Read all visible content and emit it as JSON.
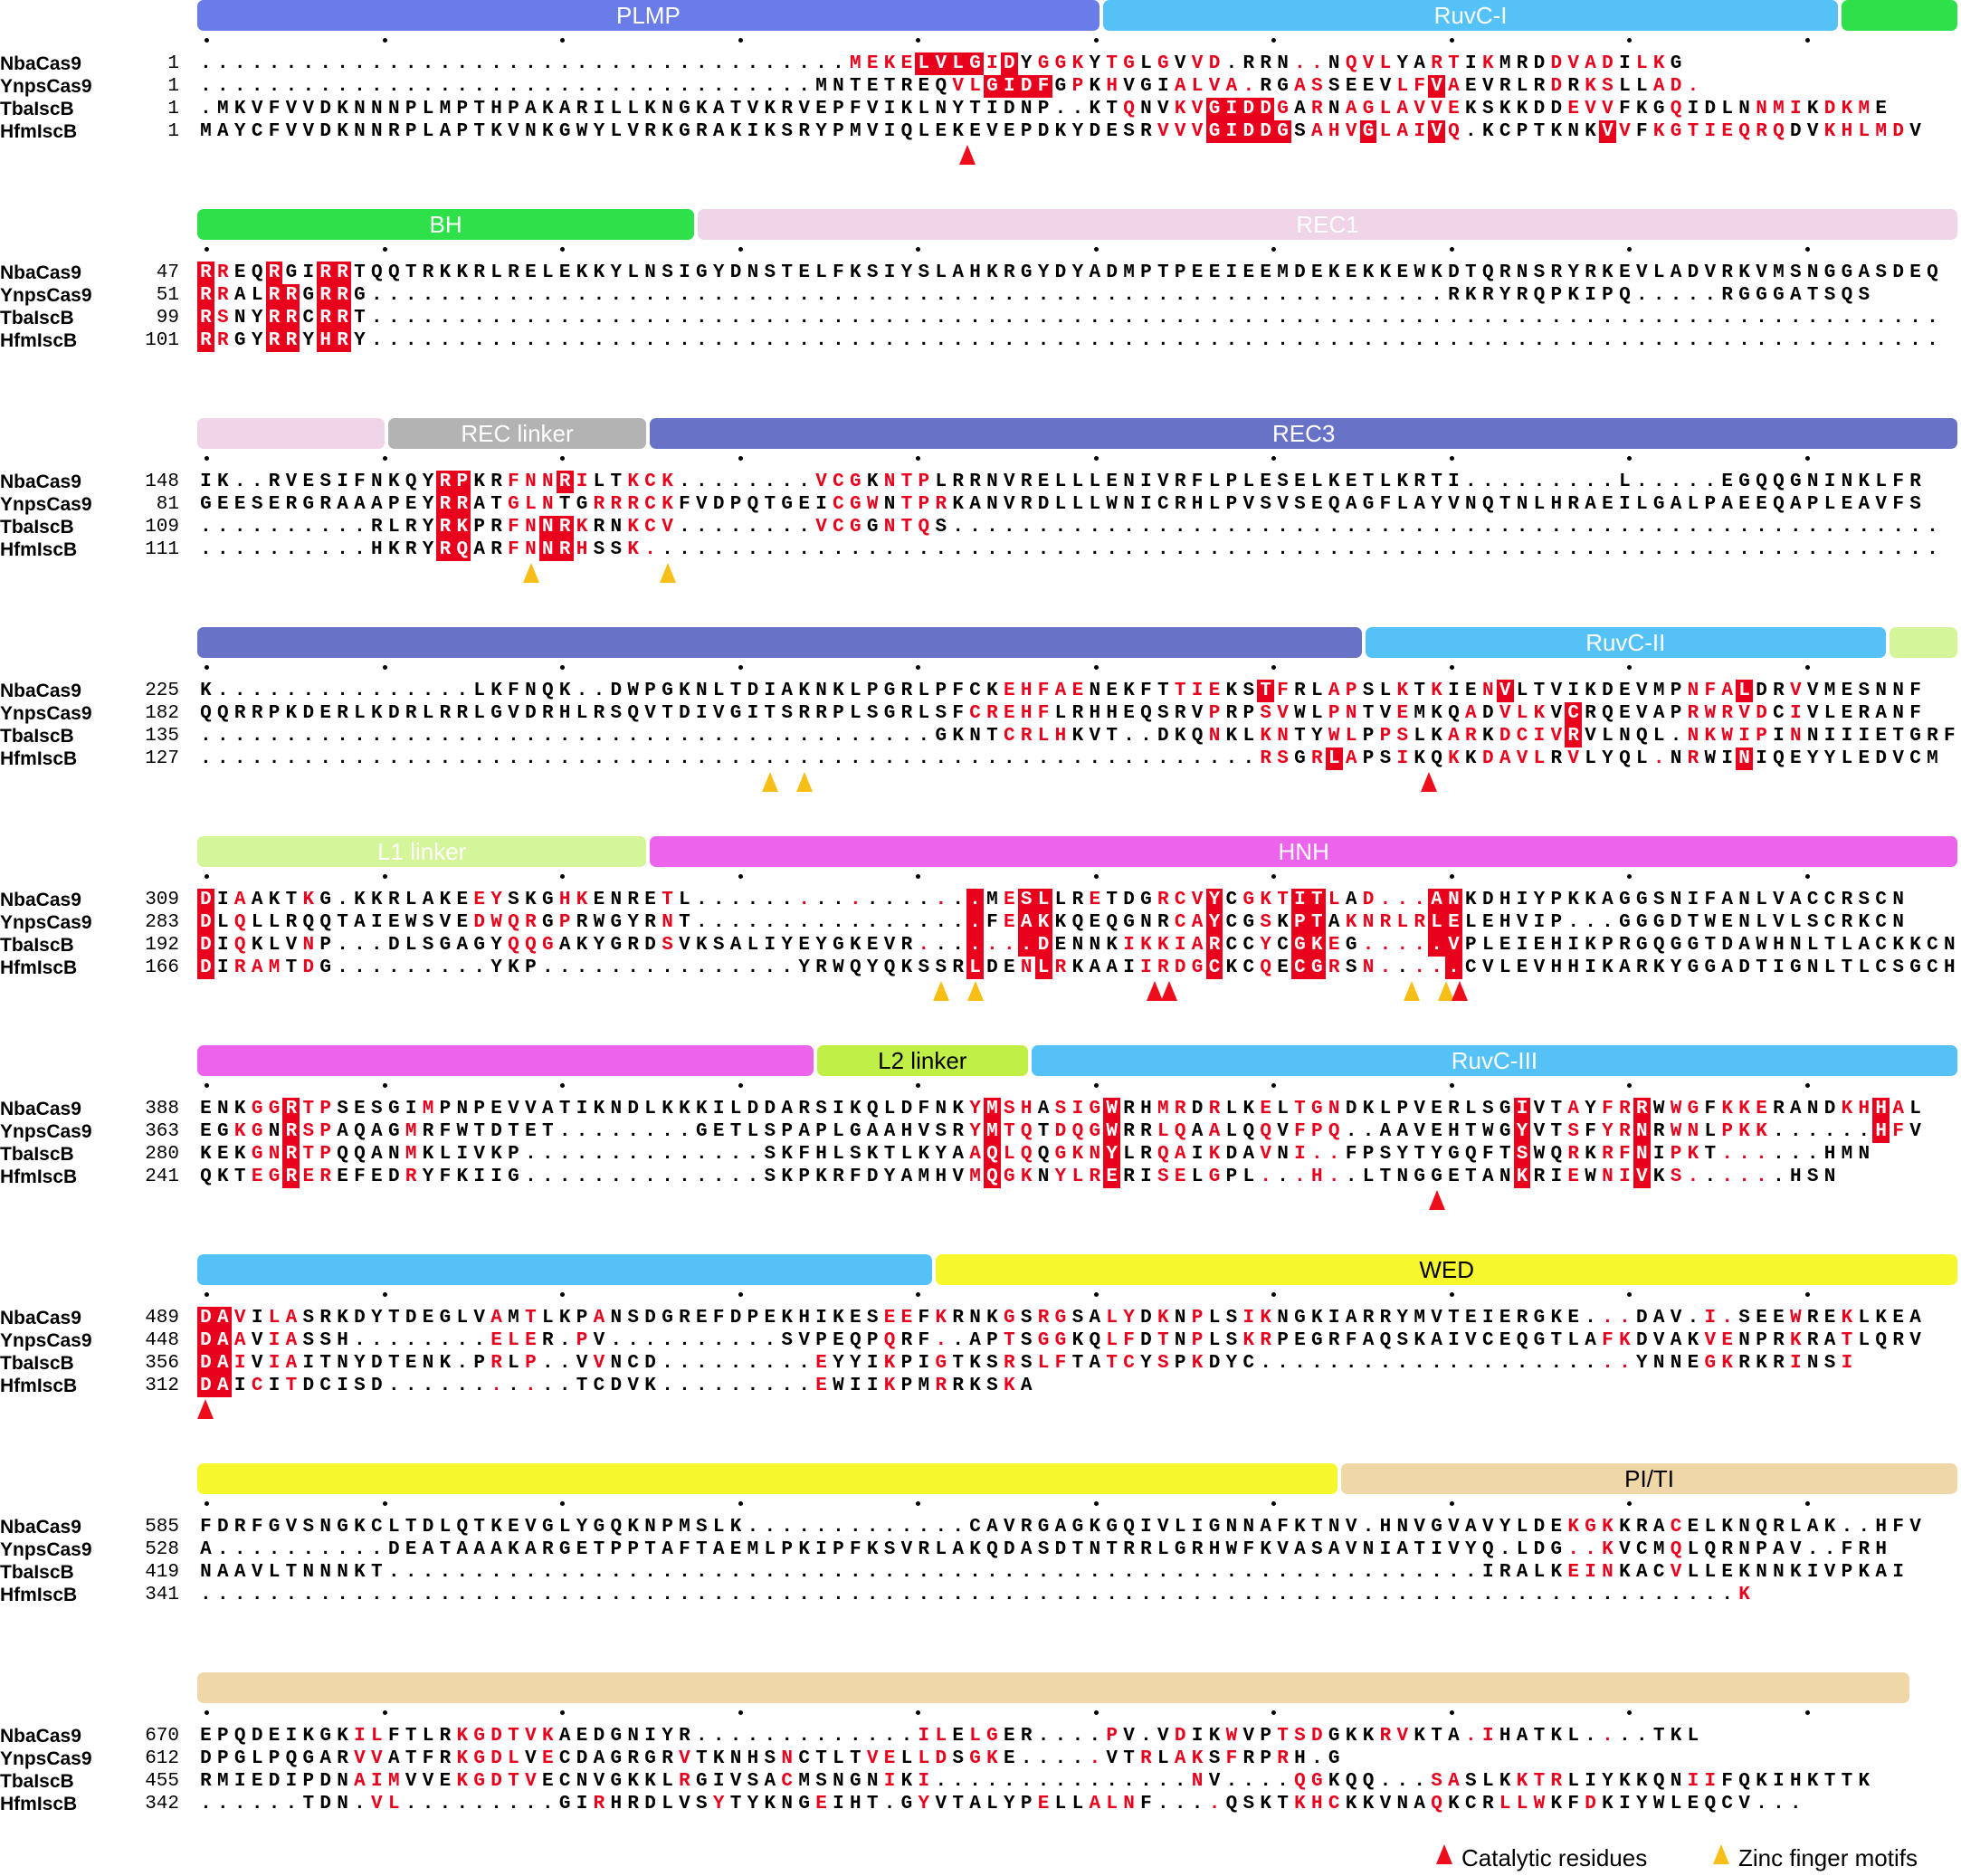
{
  "species": [
    "NbaCas9",
    "YnpsCas9",
    "TbaIscB",
    "HfmIscB"
  ],
  "blocks": [
    {
      "domains": [
        {
          "label": "PLMP",
          "start": 0,
          "end": 38,
          "color": "#6a7ce8"
        },
        {
          "label": "RuvC-I",
          "start": 38,
          "end": 69,
          "color": "#55c2f7"
        },
        {
          "label": "",
          "start": 69,
          "end": 74,
          "color": "#2ee04a"
        }
      ],
      "rows": [
        {
          "species": "NbaCas9",
          "start": "1",
          "seq": "...................................... MEKELVLGIDYGGKYTGLGVVD.RRN..NQVLYARTIKMRDDVADILKG",
          "hl": "38-39:rr,40-41:rr,42-45:hh,46:r,47:h,49:r,50:r,51:r,53:r,54:r,56:r,58:r,59:r,64:r,65:r,67:r,68:r,69:r,72:r,73:r,75:r,79:r,80:r,81:r,82:r,84:r,85:r"
        },
        {
          "species": "YnpsCas9",
          "start": "1",
          "seq": "....................................MNTETREQVLGIDFGPKHVGIALVA.RGASSEEVLFVAEVRLRDRKSLLAD.",
          "hl": "44:r,45:r,46-49:h,51:r,53:r,57:r,58:r,59:r,60:r,61:r,64:r,65:r,70:r,71:r,72:h,73:r,79:r,81:r,82:r,85:r,86:r,87:r"
        },
        {
          "species": "TbaIscB",
          "start": "1",
          "seq": ".MKVFVVDKNNNPLMPTHPAKARILLKNGKATVKRVEPFVIKLNYTIDNP..KTQNVKVGIDDGARNAGLAVVEKSKKDDEVVFKGQIDLNNMIKDKME",
          "hl": "54:r,57:r,58:r,59-62:h,63:r,65:r,67:r,68:r,69:r,70:r,71:r,72:r,73:r,80:r,81:r,82:r,86:r,91:r,92:r,93:r,95:r,96:r,97:r"
        },
        {
          "species": "HfmIscB",
          "start": "1",
          "seq": "MAYCFVVDKNNRPLAPTKVNKGWYLVRKGRAKIKSRYPMVIQLEKEVEPDKYDESRVVVGIDDGSAHVGLAIVQ.KCPTKNKVVFKGTIEQRQDVKHLMDV",
          "hl": "56:r,57:r,58:r,59-62:h,63:h,65:r,66:r,67:r,68:h,69:r,70:r,71:r,72:h,73:r,82:h,83:r,85:r,86:r,87:r,88:r,89:r,90:r,91:r,92:r,95:r,96:r,97:r,98:r,99:r"
        }
      ],
      "markers": [
        {
          "col": 45,
          "kind": "cat"
        }
      ]
    },
    {
      "domains": [
        {
          "label": "BH",
          "start": 0,
          "end": 21,
          "color": "#2ee04a"
        },
        {
          "label": "REC1",
          "start": 21,
          "end": 74,
          "color": "#f0d4e8"
        }
      ],
      "rows": [
        {
          "species": "NbaCas9",
          "start": "47",
          "seq": "RREQRGIRRTQQTRKKRLRELEKKYLNSIGYDNSTELFKSIYSLAHKRGYDYADMPTPEEIEEMDEKEKKEWKDTQRNSRYRKEVLADVRKVMSNGGASDEQ",
          "hl": "0:h,1:r,4:h,7:h,8:h"
        },
        {
          "species": "YnpsCas9",
          "start": "51",
          "seq": "RRALRRGRRG...............................................................RKRYRQPKIPQ.....RGGGATSQS",
          "hl": "0:h,1:r,4:h,5:h,7:h,8:h"
        },
        {
          "species": "TbaIscB",
          "start": "99",
          "seq": "RSNYRRCRRT............................................................................................",
          "hl": "0:h,1:r,4:h,5:h,7:h,8:h"
        },
        {
          "species": "HfmIscB",
          "start": "101",
          "seq": "RRGYRRYHRY............................................................................................",
          "hl": "0:h,1:r,4:h,5:h,7:h,8:h"
        }
      ],
      "markers": []
    },
    {
      "domains": [
        {
          "label": "",
          "start": 0,
          "end": 8,
          "color": "#f0d4e8"
        },
        {
          "label": "REC linker",
          "start": 8,
          "end": 19,
          "color": "#b3b3b3"
        },
        {
          "label": "REC3",
          "start": 19,
          "end": 74,
          "color": "#6872c6"
        }
      ],
      "rows": [
        {
          "species": "NbaCas9",
          "start": "148",
          "seq": "IK..RVESIFNKQYRPKRFNNRILTKCK........VCGKNTPLRRNVRELLLENIVRFLPLESELKETLKRTI.........L.....EGQQGNINKLFR",
          "hl": "14-15:hh,18:r,19:r,20:r,21:h,22:r,25:r,26:r,27:r,36:r,37:r,38:r,40:r,41:r,42:r"
        },
        {
          "species": "YnpsCas9",
          "start": "81",
          "seq": "GEESERGRAAAPEYRRATGLNTGRRRCKFVDPQTGEICGWNTPRKANVRDLLLWNICRHLPVSVSEQAGFLAYVNQTNLHRAEILGALPAEEQAPLEAVFS",
          "hl": "14-15:hh,18:r,19:r,20:r,23:r,24:r,25:r,26:r,27:r,37:r,38:r,39:r,41:r,42:r,43:r"
        },
        {
          "species": "TbaIscB",
          "start": "109",
          "seq": "..........RLRYRKPRFNNRKRNKCV........VCGGNTQS..........................................................",
          "hl": "14-15:hh,18:r,19:r,20:h,21:h,22:r,25:r,26:r,27:r,36:r,37:r,38:r,40:r,41:r,42:r"
        },
        {
          "species": "HfmIscB",
          "start": "111",
          "seq": "..........HKRYRQARFNNRHSSK............................................................................",
          "hl": "14-15:hh,18:r,19:r,20:h,21:h,22:r,25:r,26:r"
        }
      ],
      "markers": [
        {
          "col": 19.5,
          "kind": "zinc"
        },
        {
          "col": 27.5,
          "kind": "zinc"
        }
      ]
    },
    {
      "domains": [
        {
          "label": "",
          "start": 0,
          "end": 49,
          "color": "#6872c6"
        },
        {
          "label": "RuvC-II",
          "start": 49,
          "end": 71,
          "color": "#55c2f7"
        },
        {
          "label": "",
          "start": 71,
          "end": 74,
          "color": "#d5f59a"
        }
      ],
      "rows": [
        {
          "species": "NbaCas9",
          "start": "225",
          "seq": "K...............LKFNQK..DWPGKNLTDIAKNKLPGRLPFCKEHFAENEKFTTIEKSTFRLAPSLKTKIENVLTVIKDEVMPNFALDRVVMESNNF",
          "hl": "47:r,48:r,49:r,50:r,51:r,57:r,58:r,59:r,62:h,63:r,66:r,67:r,70:r,72:r,75:r,76:h,87:r,88:r,89:r,90:h,93:r"
        },
        {
          "species": "YnpsCas9",
          "start": "182",
          "seq": "QQRRPKDERLKDRLRRLGVDRHLRSQVTDIVGITSRRPLSGRLSFCREHFLRHHEQSRVPRPSVWLPNTVEMKQADVLKVCRQEVAPRWRVDCIVLERANF",
          "hl": "45:r,46:r,47:r,48:r,49:r,59:r,62:r,63:r,66:r,67:r,70:r,74:r,76:r,77:r,78:r,80:h,87:r,88:r,89:r,90:r,91:r,93:r"
        },
        {
          "species": "TbaIscB",
          "start": "135",
          "seq": "...........................................GKNTCRLHKVT..DKQNKLKNTYWLPPSLKARKDCIVRVLNQL.NKWIPINNIIIETGRF",
          "hl": "47:r,48:r,49:r,50:r,59:r,62:r,63:r,66:r,67:r,69:r,70:r,73:r,74:r,76:r,77:r,78:r,79:r,80:h,87:r,88:r,89:r,90:r,91:r,93:r"
        },
        {
          "species": "HfmIscB",
          "start": "127",
          "seq": "..............................................................RSGRLAPSIKQKKDAVLRVLYQL.NRWINIQEYYLEDVCM",
          "hl": "62:r,63:r,65:r,66:h,67:r,70:r,73:r,75:r,76:r,77:r,78:r,80:r,85:r,87:r,90:h"
        }
      ],
      "markers": [
        {
          "col": 33.5,
          "kind": "zinc"
        },
        {
          "col": 35.5,
          "kind": "zinc"
        },
        {
          "col": 72,
          "kind": "cat"
        }
      ]
    },
    {
      "domains": [
        {
          "label": "L1 linker",
          "start": 0,
          "end": 19,
          "color": "#d5f59a"
        },
        {
          "label": "HNH",
          "start": 19,
          "end": 74,
          "color": "#ec64ec"
        }
      ],
      "rows": [
        {
          "species": "NbaCas9",
          "start": "309",
          "seq": "DIAAKTKG.KKRLAKEEYSKGHKENRETL.................MESLLRETDGRCVYCGKTITLAD...ANKDHIYPKKAGGSNIFANLVACCRSCN",
          "hl": "0:h,2:r,6:r,16:r,17:r,21:r,22:r,27:r,35:r,38:r,43:r,45:h,47:r,48-49:hh,52:r,56:r,57:r,58:r,59:h,61:r,62:r,63:r,64-65:hh,66:r,68:r,69:r,70:r,71:r,72:h,73:h"
        },
        {
          "species": "YnpsCas9",
          "start": "283",
          "seq": "DLQLLRQQTAIEWSVEDWQRGPRWGYRNT.................FEAKKQEQGNRCAYCGSKPTAKNRLRLELEHVIP...GGGDTWENLVLSCRKCN",
          "hl": "0:h,2:r,16:r,17:r,18:r,19:r,21:r,27:r,45:h,47:r,48-49:hh,57:r,58:r,59:h,62:r,64-65:hh,67:r,68:r,69:r,70:r,71:r,72:h,73:h"
        },
        {
          "species": "TbaIscB",
          "start": "192",
          "seq": "DIQKLVNP...DLSGAGYQQGAKYGRDSVKSALIYEYGKEVR.......DENNKIKKIARCCYCGKEG.....VPLEIEHIKPRGQGGTDAWHNLTLACKKCN",
          "hl": "0:h,2:r,6:r,18:r,19:r,20:r,27:r,42:r,45:h,46:r,47:r,48-49:hh,54:r,55:r,56:r,57:r,58:r,59:h,62:r,64-65:hh,66:r,68:r,69:r,70:r,71:r,72:h,73:h"
        },
        {
          "species": "HfmIscB",
          "start": "166",
          "seq": "DIRAMTDG.........YKP...............YRWQYQKSSRLDENLRKAAIIRDGCKCQECGRSN.....CVLEVHHIKARKYGGADTIGNLTLCSGCH",
          "hl": "0:h,2:r,3:r,4:r,6:r,45:h,48:r,49:h,50:r,55:r,56:r,57:r,58:r,59:h,62:r,64-65:hh,66:r,68:r,69:r,71:r,72:r,73:h"
        }
      ],
      "markers": [
        {
          "col": 43.5,
          "kind": "zinc"
        },
        {
          "col": 45.5,
          "kind": "zinc"
        },
        {
          "col": 56,
          "kind": "cat"
        },
        {
          "col": 56.8,
          "kind": "cat"
        },
        {
          "col": 71,
          "kind": "zinc"
        },
        {
          "col": 73,
          "kind": "zinc"
        },
        {
          "col": 73.8,
          "kind": "cat"
        }
      ]
    },
    {
      "domains": [
        {
          "label": "",
          "start": 0,
          "end": 26,
          "color": "#ec64ec"
        },
        {
          "label": "L2 linker",
          "start": 26,
          "end": 35,
          "color": "#c0f046",
          "dark": true
        },
        {
          "label": "RuvC-III",
          "start": 35,
          "end": 74,
          "color": "#55c2f7"
        }
      ],
      "rows": [
        {
          "species": "NbaCas9",
          "start": "388",
          "seq": "ENKGGRTPSESGIMPNPEVVATIKNDLKKKILDDARSIKQLDFNKYMSHASIGWRHMRDRLKELTGNDKLPVERLSGIVTAYFRRWWGFKKERANDKHHAL",
          "hl": "3:r,4:r,5:h,6:r,7:r,13:r,45:r,46:h,47:r,48:r,50:r,51:r,52:r,53:h,56:r,57:r,59:r,62:r,64:r,65:r,66:r,77:h,80:r,82:r,83:r,84:h,86:r,87:r,89:r,90:r,91:r,96:r,97:r,98:h,99:r"
        },
        {
          "species": "YnpsCas9",
          "start": "363",
          "seq": "EGKGNRSPAQAGMRFWTDTET........GETLSPAPLGAAHVSRYMTQTDQGWRRLQAALQQVFPQ..AAVEHTWGYVTSFYRNRWNLPKK......HFV",
          "hl": "2:r,3:r,5:h,6:r,7:r,12:r,45:r,46:h,47:r,48:r,50:r,51:r,52:r,53:h,56:r,57:r,59:r,62:r,64:r,65:r,66:r,77:h,80:r,82:r,83:r,84:h,86:r,87:r,89:r,90:r,91:r,98:h,99:r"
        },
        {
          "species": "TbaIscB",
          "start": "280",
          "seq": "KEKGNRTPQQANMKLIVKP..............SKFHLSKTLKYAAQLQQGKNYLRQAIKDAVNI..FPSYTYGQFTSWQRKRFNIPKT......HMN",
          "hl": "3:r,4:r,5:h,6:r,7:r,12:r,45:r,46:h,47:r,48:r,50:r,51:r,52:r,53:h,56:r,57:r,59:r,62:r,64:r,65:r,66:r,77:h,80:r,82:r,83:r,84:h,86:r,87:r,89:r,90:r,91:r,98:h,99:r"
        },
        {
          "species": "HfmIscB",
          "start": "241",
          "seq": "QKTEGREREFEDRYFKIIG..............SKPKRFDYAMHVMQGKNYLRERISELGPL...H..LTNGGETANKRIEWNIVKS......HSN",
          "hl": "3:r,4:r,5:h,6:r,7:r,12:r,45:r,46:h,47:r,48:r,50:r,51:r,52:r,53:h,56:r,57:r,59:r,62:r,64:r,65:r,66:r,77:h,80:r,82:r,83:r,84:h,86:r,87:r,89:r,90:r,91:r,98:h"
        }
      ],
      "markers": [
        {
          "col": 72.5,
          "kind": "cat"
        }
      ]
    },
    {
      "domains": [
        {
          "label": "",
          "start": 0,
          "end": 31,
          "color": "#55c2f7"
        },
        {
          "label": "WED",
          "start": 31,
          "end": 74,
          "color": "#f6f72c",
          "dark": true
        }
      ],
      "rows": [
        {
          "species": "NbaCas9",
          "start": "489",
          "seq": "DAVILASRKDYTDEGLVAMTLKPANSDGREFDPEKHIKESEEFKRNKGSRGSALYDKNPLSIKNGKIARRYMVTEIERGKE...DAV.I.SEEWREKLKEA",
          "hl": "0-1:hh,2:r,4:r,5:r,17:r,19:r,23:r,40:r,41:r,43:r,47:r,49:r,50:r,53:r,54:r,56:r,58:r,61:r,62:r,82:r,83:r,88:r,89:r,93:r,96:r"
        },
        {
          "species": "YnpsCas9",
          "start": "448",
          "seq": "DAAVIASSH........ELER.PV..........SVPEQPQRF..APTSGGKQLFDTNPLSKRPEGRFAQSKAIVCEQGTLAFKDVAKVENPRKRATLQRV",
          "hl": "0-1:hh,2:r,4:r,5:r,17:r,18:r,19:r,22:r,40:r,43:r,47:r,49:r,50:r,53:r,54:r,56:r,58:r,61:r,62:r,82:r,83:r,88:r,89:r,93:r,96:r"
        },
        {
          "species": "TbaIscB",
          "start": "356",
          "seq": "DAIVIAITNYDTENK.PRLP..VVNCD.........EYYIKPIGTKSRSLFTATCYSPKDYC......................YNNEGKRKRINSI",
          "hl": "0-1:hh,2:r,4:r,5:r,17:r,19:r,23:r,36:r,40:r,43:r,47:r,49:r,50:r,53:r,54:r,56:r,58:r,82:r,83:r,88:r,89:r,93:r,96:r"
        },
        {
          "species": "HfmIscB",
          "start": "312",
          "seq": "DAICITDCISD...........TCDVK.........EWIIKPMRRKSKA",
          "hl": "0-1:hh,3:r,5:r,17:r,19:r,36:r,40:r,43:r,47:r"
        }
      ],
      "markers": [
        {
          "col": 0.5,
          "kind": "cat"
        }
      ]
    },
    {
      "domains": [
        {
          "label": "",
          "start": 0,
          "end": 48,
          "color": "#f6f72c"
        },
        {
          "label": "PI/TI",
          "start": 48,
          "end": 74,
          "color": "#f0d7a8",
          "dark": true
        }
      ],
      "rows": [
        {
          "species": "NbaCas9",
          "start": "585",
          "seq": "FDRFGVSNGKCLTDLQTKEVGLYGQKNPMSLK.............CAVRGAGKGQIVLIGNNAFKTNV.HNVGVAVYLDEKGKKRACELKNQRLAK..HFV",
          "hl": "80:r,81:r,82:r,86:r"
        },
        {
          "species": "YnpsCas9",
          "start": "528",
          "seq": "A..........DEATAAAKARGETPPTAFTAEMLPKIPFKSVRLAKQDASDTNTRRLGRHWFKVASAVNIATIVYQ.LDG..KVCMQLQRNPAV..FRH",
          "hl": "80:r,81:r,82:r,86:r"
        },
        {
          "species": "TbaIscB",
          "start": "419",
          "seq": "NAAVLTNNNKT................................................................IRALKEINKACVLLEKNNKIVPKAI",
          "hl": "80:r,81:r,82:r,86:r"
        },
        {
          "species": "HfmIscB",
          "start": "341",
          "seq": "..........................................................................................K",
          "hl": "90:r"
        }
      ],
      "markers": []
    },
    {
      "domains": [
        {
          "label": "",
          "start": 0,
          "end": 72,
          "color": "#f0d7a8"
        }
      ],
      "rows": [
        {
          "species": "NbaCas9",
          "start": "670",
          "seq": "EPQDEIKGKILFTLRKGDTVKAEDGNIYR.............ILELGER....PV.VDIKWVPTSDGKKRVKTA.IHATKL....TKL",
          "hl": "9:r,10:r,15:r,16:r,17:r,18:r,19:r,20:r,42:r,43:r,45:r,46:r,53:r,57:r,60:r,63:r,64:r,65:r,69:r,70:r,74:r,75:r,82:r"
        },
        {
          "species": "YnpsCas9",
          "start": "612",
          "seq": "DPGLPQGARVVATFRKGDLVECDAGRGRVTKNHSNCTLTVELLDSGKE.....VTRLAKSFRPRH.G",
          "hl": "9:r,10:r,15:r,16:r,17:r,18:r,20:r,28:r,34:r,39:r,40:r,42:r,43:r,45:r,46:r,52:r,55:r,57:r,58:r,60:r,63:r"
        },
        {
          "species": "TbaIscB",
          "start": "455",
          "seq": "RMIEDIPDNAIMVVEKGDTVECNVGKKLRGIVSACMSNGNIKI...............NV....QGKQQ...SASLKKTRLIYKKQNIIFQKIHKTTK",
          "hl": "9:r,10:r,11:r,15:r,16:r,17:r,18:r,19:r,28:r,34:r,40:r,42:r,58:r,64:r,65:r,72:r,73:r,77:r,78:r,79:r,87:r,88:r"
        },
        {
          "species": "HfmIscB",
          "start": "342",
          "seq": "......TDN.VL.........GIRHRDLVSYTYKNGEIHT.GYVTALYPELLALNF....QSKTKHCKKVNAQKCRLLWKFDKIYWLEQCV...",
          "hl": "10:r,11:r,23:r,30:r,36:r,42:r,49:r,52:r,53:r,54:r,59:r,64:r,65:r,66:r,72:r,76:r,77:r,78:r,81:r"
        }
      ],
      "markers": []
    }
  ],
  "legend": {
    "catalytic": "Catalytic residues",
    "zinc": "Zinc finger motifs"
  },
  "colors": {
    "residue_red": "#e8001c",
    "catalytic": "#ee0d1a",
    "zinc": "#f6be16"
  }
}
